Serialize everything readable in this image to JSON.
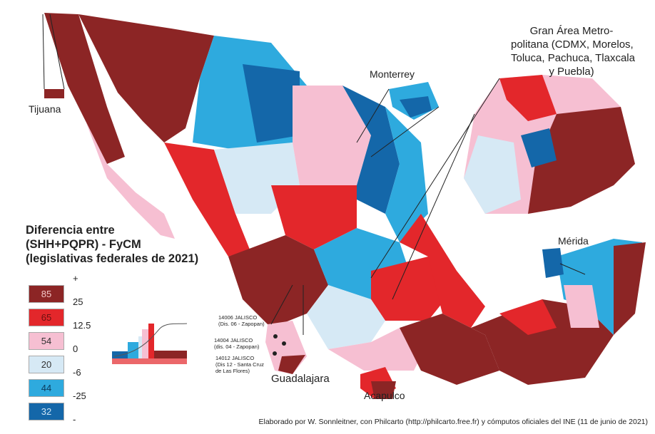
{
  "legend": {
    "title_lines": [
      "Diferencia entre",
      "(SHH+PQPR) - FyCM",
      "(legislativas federales de 2021)"
    ],
    "classes": [
      {
        "count": "85",
        "color": "#8c2525",
        "text_color": "#f3c7c7"
      },
      {
        "count": "65",
        "color": "#e3272b",
        "text_color": "#6a1010"
      },
      {
        "count": "54",
        "color": "#f6bfd2",
        "text_color": "#333333"
      },
      {
        "count": "20",
        "color": "#d6e9f5",
        "text_color": "#333333"
      },
      {
        "count": "44",
        "color": "#2eaade",
        "text_color": "#0b3a5c"
      },
      {
        "count": "32",
        "color": "#1467a9",
        "text_color": "#cfe6f7"
      }
    ],
    "breaks": [
      "+",
      "25",
      "12.5",
      "0",
      "-6",
      "-25",
      "-"
    ]
  },
  "insets": {
    "tijuana": "Tijuana",
    "monterrey": "Monterrey",
    "gam": [
      "Gran Área Metro-",
      "politana (CDMX, Morelos,",
      "Toluca, Pachuca, Tlaxcala",
      "y Puebla)"
    ],
    "merida": "Mérida",
    "guadalajara": "Guadalajara",
    "acapulco": "Acapulco"
  },
  "districts": [
    [
      "14006 JALISCO",
      "(Dis. 06 - Zapopan)"
    ],
    [
      "14004 JALISCO",
      "(dis. 04 - Zapopan)"
    ],
    [
      "14012 JALISCO",
      "(Dis  12 - Santa Cruz",
      "de Las Flores)"
    ]
  ],
  "credit": "Elaborado por W. Sonnleitner, con Philcarto (http://philcarto.free.fr) y cómputos oficiales del INE (11 de junio de 2021)"
}
